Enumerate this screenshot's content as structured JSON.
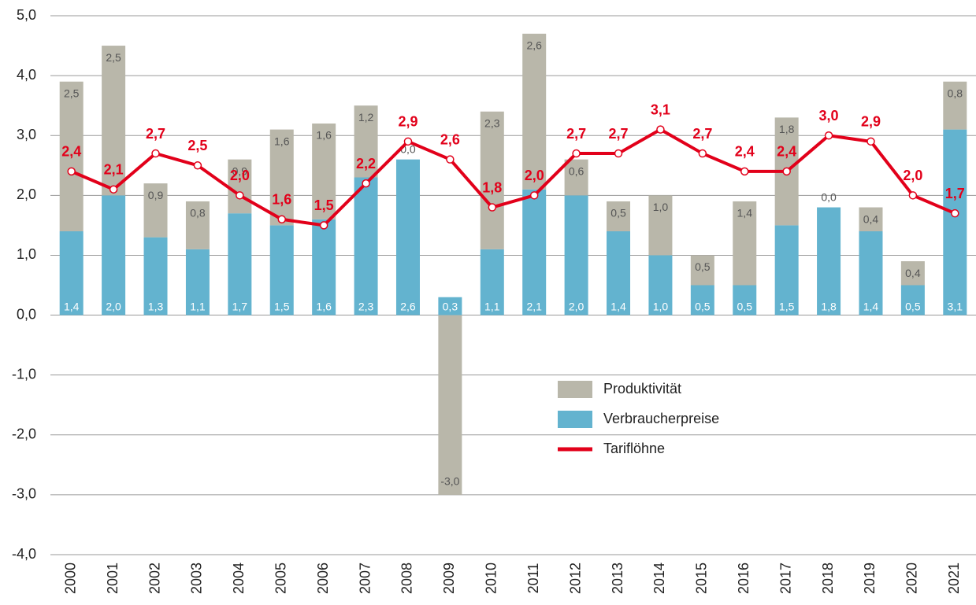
{
  "chart_data": {
    "type": "bar",
    "categories": [
      "2000",
      "2001",
      "2002",
      "2003",
      "2004",
      "2005",
      "2006",
      "2007",
      "2008",
      "2009",
      "2010",
      "2011",
      "2012",
      "2013",
      "2014",
      "2015",
      "2016",
      "2017",
      "2018",
      "2019",
      "2020",
      "2021"
    ],
    "series": [
      {
        "name": "Verbraucherpreise",
        "color": "#63b3cf",
        "type": "bar",
        "values": [
          1.4,
          2.0,
          1.3,
          1.1,
          1.7,
          1.5,
          1.6,
          2.3,
          2.6,
          0.3,
          1.1,
          2.1,
          2.0,
          1.4,
          1.0,
          0.5,
          0.5,
          1.5,
          1.8,
          1.4,
          0.5,
          3.1
        ],
        "value_labels": [
          "1,4",
          "2,0",
          "1,3",
          "1,1",
          "1,7",
          "1,5",
          "1,6",
          "2,3",
          "2,6",
          "0,3",
          "1,1",
          "2,1",
          "2,0",
          "1,4",
          "1,0",
          "0,5",
          "0,5",
          "1,5",
          "1,8",
          "1,4",
          "0,5",
          "3,1"
        ]
      },
      {
        "name": "Produktivität",
        "color": "#b9b7aa",
        "type": "bar",
        "values": [
          2.5,
          2.5,
          0.9,
          0.8,
          0.9,
          1.6,
          1.6,
          1.2,
          0.0,
          -3.0,
          2.3,
          2.6,
          0.6,
          0.5,
          1.0,
          0.5,
          1.4,
          1.8,
          0.0,
          0.4,
          0.4,
          0.8
        ],
        "value_labels": [
          "2,5",
          "2,5",
          "0,9",
          "0,8",
          "0,9",
          "1,6",
          "1,6",
          "1,2",
          "0,0",
          "-3,0",
          "2,3",
          "2,6",
          "0,6",
          "0,5",
          "1,0",
          "0,5",
          "1,4",
          "1,8",
          "0,0",
          "0,4",
          "0,4",
          "0,8"
        ]
      },
      {
        "name": "Tariflöhne",
        "color": "#e2001a",
        "type": "line",
        "values": [
          2.4,
          2.1,
          2.7,
          2.5,
          2.0,
          1.6,
          1.5,
          2.2,
          2.9,
          2.6,
          1.8,
          2.0,
          2.7,
          2.7,
          3.1,
          2.7,
          2.4,
          2.4,
          3.0,
          2.9,
          2.0,
          1.7
        ],
        "value_labels": [
          "2,4",
          "2,1",
          "2,7",
          "2,5",
          "2,0",
          "1,6",
          "1,5",
          "2,2",
          "2,9",
          "2,6",
          "1,8",
          "2,0",
          "2,7",
          "2,7",
          "3,1",
          "2,7",
          "2,4",
          "2,4",
          "3,0",
          "2,9",
          "2,0",
          "1,7"
        ]
      }
    ],
    "ylim": [
      -4,
      5
    ],
    "yticks": [
      {
        "value": -4,
        "label": "-4,0"
      },
      {
        "value": -3,
        "label": "-3,0"
      },
      {
        "value": -2,
        "label": "-2,0"
      },
      {
        "value": -1,
        "label": "-1,0"
      },
      {
        "value": 0,
        "label": "0,0"
      },
      {
        "value": 1,
        "label": "1,0"
      },
      {
        "value": 2,
        "label": "2,0"
      },
      {
        "value": 3,
        "label": "3,0"
      },
      {
        "value": 4,
        "label": "4,0"
      },
      {
        "value": 5,
        "label": "5,0"
      }
    ],
    "grid": true,
    "stacked": true
  }
}
